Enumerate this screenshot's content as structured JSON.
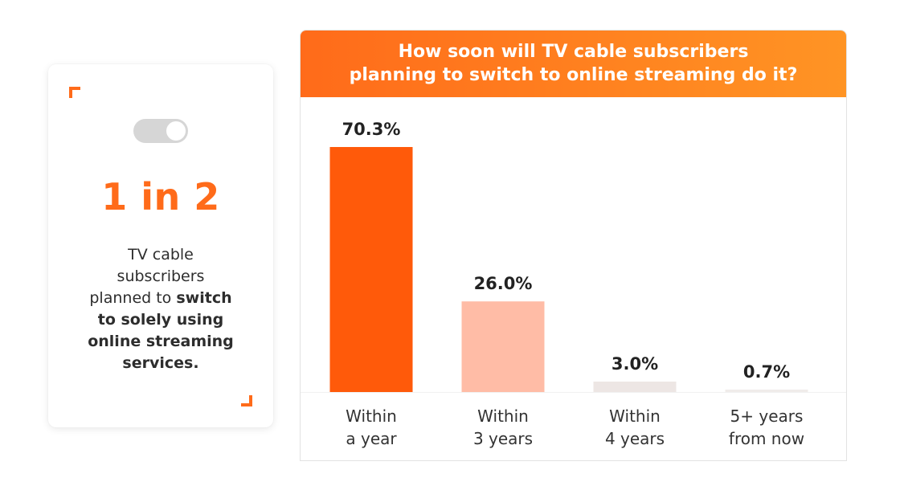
{
  "stat_card": {
    "big_stat": "1 in 2",
    "desc_lines": [
      {
        "normal": "TV cable",
        "bold": ""
      },
      {
        "normal": "subscribers",
        "bold": ""
      },
      {
        "normal": "planned to ",
        "bold": "switch"
      },
      {
        "normal": "",
        "bold": "to solely using"
      },
      {
        "normal": "",
        "bold": "online streaming"
      },
      {
        "normal": "",
        "bold": "services."
      }
    ]
  },
  "colors": {
    "accent": "#ff6b1a",
    "header_start": "#ff6b1a",
    "header_end": "#ff9424",
    "bar_1": "#ff5a0a",
    "bar_2": "#ffbca6",
    "bar_3": "#ede6e4",
    "bar_4": "#f0ecea",
    "text_dark": "#222222"
  },
  "chart_data": {
    "type": "bar",
    "title_lines": [
      "How soon will TV cable subscribers",
      "planning to switch to online streaming do it?"
    ],
    "categories": [
      [
        "Within",
        "a year"
      ],
      [
        "Within",
        "3 years"
      ],
      [
        "Within",
        "4 years"
      ],
      [
        "5+ years",
        "from now"
      ]
    ],
    "values": [
      70.3,
      26.0,
      3.0,
      0.7
    ],
    "value_labels": [
      "70.3%",
      "26.0%",
      "3.0%",
      "0.7%"
    ],
    "unit": "%",
    "ylim": [
      0,
      70.3
    ],
    "grid": false,
    "legend": "none"
  }
}
